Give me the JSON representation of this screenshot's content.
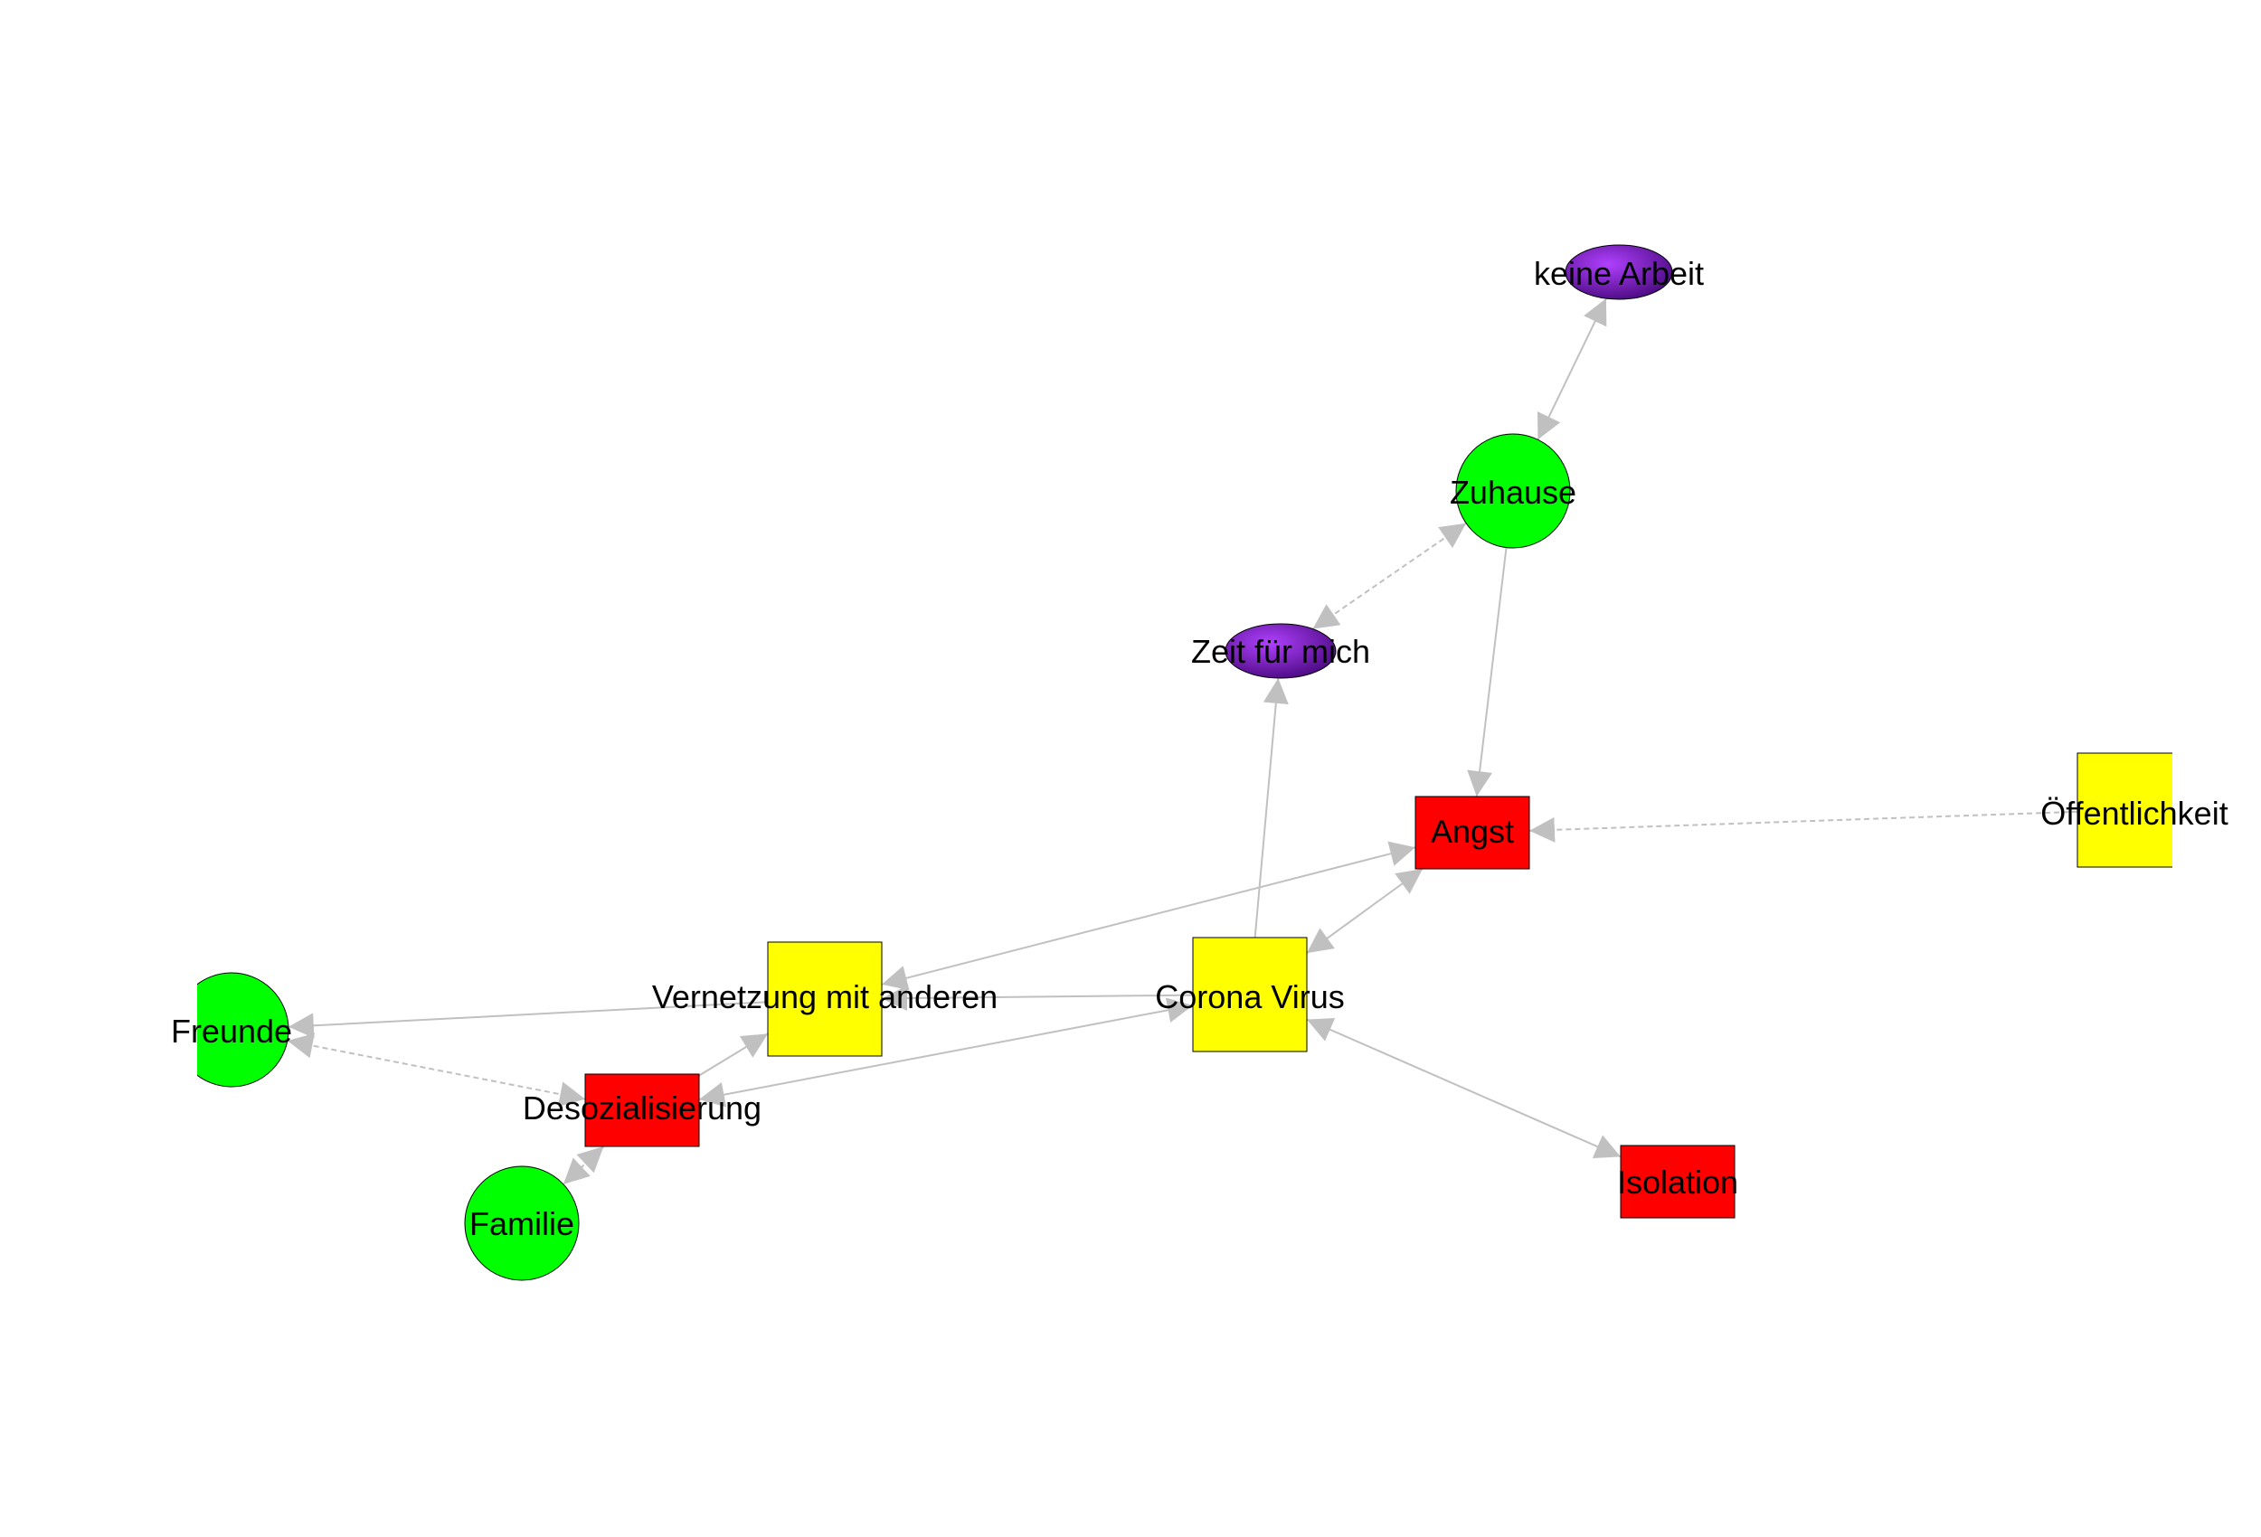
{
  "colors": {
    "background": "#ffffff",
    "edge": "#c0c0c0",
    "node_stroke": "#000000",
    "green": "#00ff00",
    "yellow": "#ffff00",
    "red": "#ff0000",
    "purple_light": "#b040ff",
    "purple_dark": "#4a0a80"
  },
  "nodes": {
    "keine_arbeit": {
      "label": "keine Arbeit",
      "shape": "ellipse",
      "color": "purple"
    },
    "zuhause": {
      "label": "Zuhause",
      "shape": "circle",
      "color": "green"
    },
    "zeit_fuer_mich": {
      "label": "Zeit für mich",
      "shape": "ellipse",
      "color": "purple"
    },
    "angst": {
      "label": "Angst",
      "shape": "rectangle",
      "color": "red"
    },
    "oeffentlichkeit": {
      "label": "Öffentlichkeit",
      "shape": "square",
      "color": "yellow"
    },
    "vernetzung": {
      "label": "Vernetzung mit anderen",
      "shape": "square",
      "color": "yellow"
    },
    "corona": {
      "label": "Corona Virus",
      "shape": "square",
      "color": "yellow"
    },
    "freunde": {
      "label": "Freunde",
      "shape": "circle",
      "color": "green"
    },
    "desozialisierung": {
      "label": "Desozialisierung",
      "shape": "rectangle",
      "color": "red"
    },
    "familie": {
      "label": "Familie",
      "shape": "circle",
      "color": "green"
    },
    "isolation": {
      "label": "Isolation",
      "shape": "rectangle",
      "color": "red"
    }
  },
  "edges": [
    {
      "from": "zuhause",
      "to": "keine_arbeit",
      "style": "solid",
      "bidirectional": true
    },
    {
      "from": "zuhause",
      "to": "zeit_fuer_mich",
      "style": "dashed",
      "bidirectional": true
    },
    {
      "from": "zuhause",
      "to": "angst",
      "style": "solid",
      "bidirectional": false
    },
    {
      "from": "corona",
      "to": "zeit_fuer_mich",
      "style": "solid",
      "bidirectional": false
    },
    {
      "from": "oeffentlichkeit",
      "to": "angst",
      "style": "dashed",
      "bidirectional": false
    },
    {
      "from": "corona",
      "to": "angst",
      "style": "solid",
      "bidirectional": true
    },
    {
      "from": "vernetzung",
      "to": "angst",
      "style": "solid",
      "bidirectional": true
    },
    {
      "from": "corona",
      "to": "vernetzung",
      "style": "solid",
      "bidirectional": false
    },
    {
      "from": "vernetzung",
      "to": "freunde",
      "style": "solid",
      "bidirectional": false
    },
    {
      "from": "desozialisierung",
      "to": "freunde",
      "style": "dashed",
      "bidirectional": true
    },
    {
      "from": "desozialisierung",
      "to": "vernetzung",
      "style": "solid",
      "bidirectional": false
    },
    {
      "from": "desozialisierung",
      "to": "corona",
      "style": "solid",
      "bidirectional": true
    },
    {
      "from": "desozialisierung",
      "to": "familie",
      "style": "dashed",
      "bidirectional": true
    },
    {
      "from": "corona",
      "to": "isolation",
      "style": "solid",
      "bidirectional": true
    }
  ]
}
